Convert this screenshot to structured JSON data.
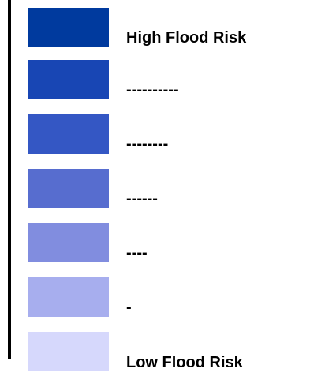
{
  "legend": {
    "items": [
      {
        "label": "High Flood Risk",
        "color": "#003a9e"
      },
      {
        "label": "----------",
        "color": "#1846b4"
      },
      {
        "label": "--------",
        "color": "#3457c4"
      },
      {
        "label": "------",
        "color": "#576dcf"
      },
      {
        "label": "----",
        "color": "#818ddf"
      },
      {
        "label": "-",
        "color": "#a7aeee"
      },
      {
        "label": "Low Flood Risk",
        "color": "#d6d8fc"
      }
    ]
  }
}
